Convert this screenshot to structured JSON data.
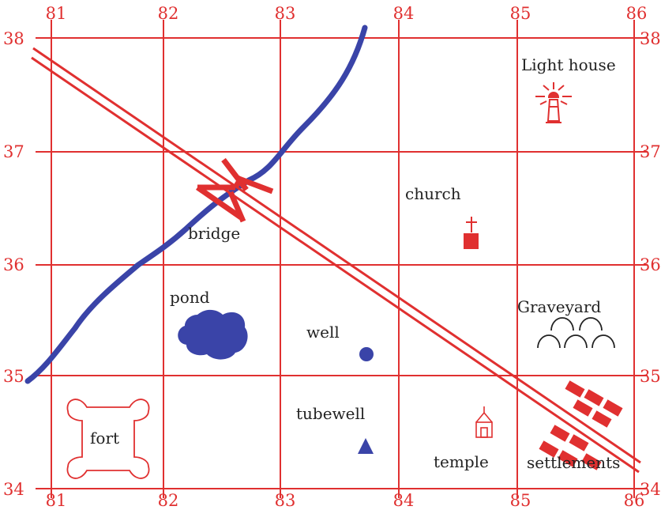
{
  "map": {
    "easting_labels": [
      "81",
      "82",
      "83",
      "84",
      "85",
      "86"
    ],
    "northing_labels": [
      "38",
      "37",
      "36",
      "35",
      "34"
    ],
    "colors": {
      "grid": "#e03030",
      "river": "#3a44a8",
      "road": "#e03030",
      "text": "#222222"
    },
    "features": {
      "light_house": {
        "label": "Light house",
        "icon": "lighthouse-icon"
      },
      "church": {
        "label": "church",
        "icon": "church-icon"
      },
      "bridge": {
        "label": "bridge",
        "icon": "bridge-icon"
      },
      "pond": {
        "label": "pond",
        "icon": "pond-icon"
      },
      "well": {
        "label": "well",
        "icon": "well-icon"
      },
      "graveyard": {
        "label": "Graveyard",
        "icon": "graveyard-icon"
      },
      "tubewell": {
        "label": "tubewell",
        "icon": "tubewell-icon"
      },
      "fort": {
        "label": "fort",
        "icon": "fort-icon"
      },
      "temple": {
        "label": "temple",
        "icon": "temple-icon"
      },
      "settlements": {
        "label": "settlements",
        "icon": "settlements-icon"
      }
    }
  }
}
